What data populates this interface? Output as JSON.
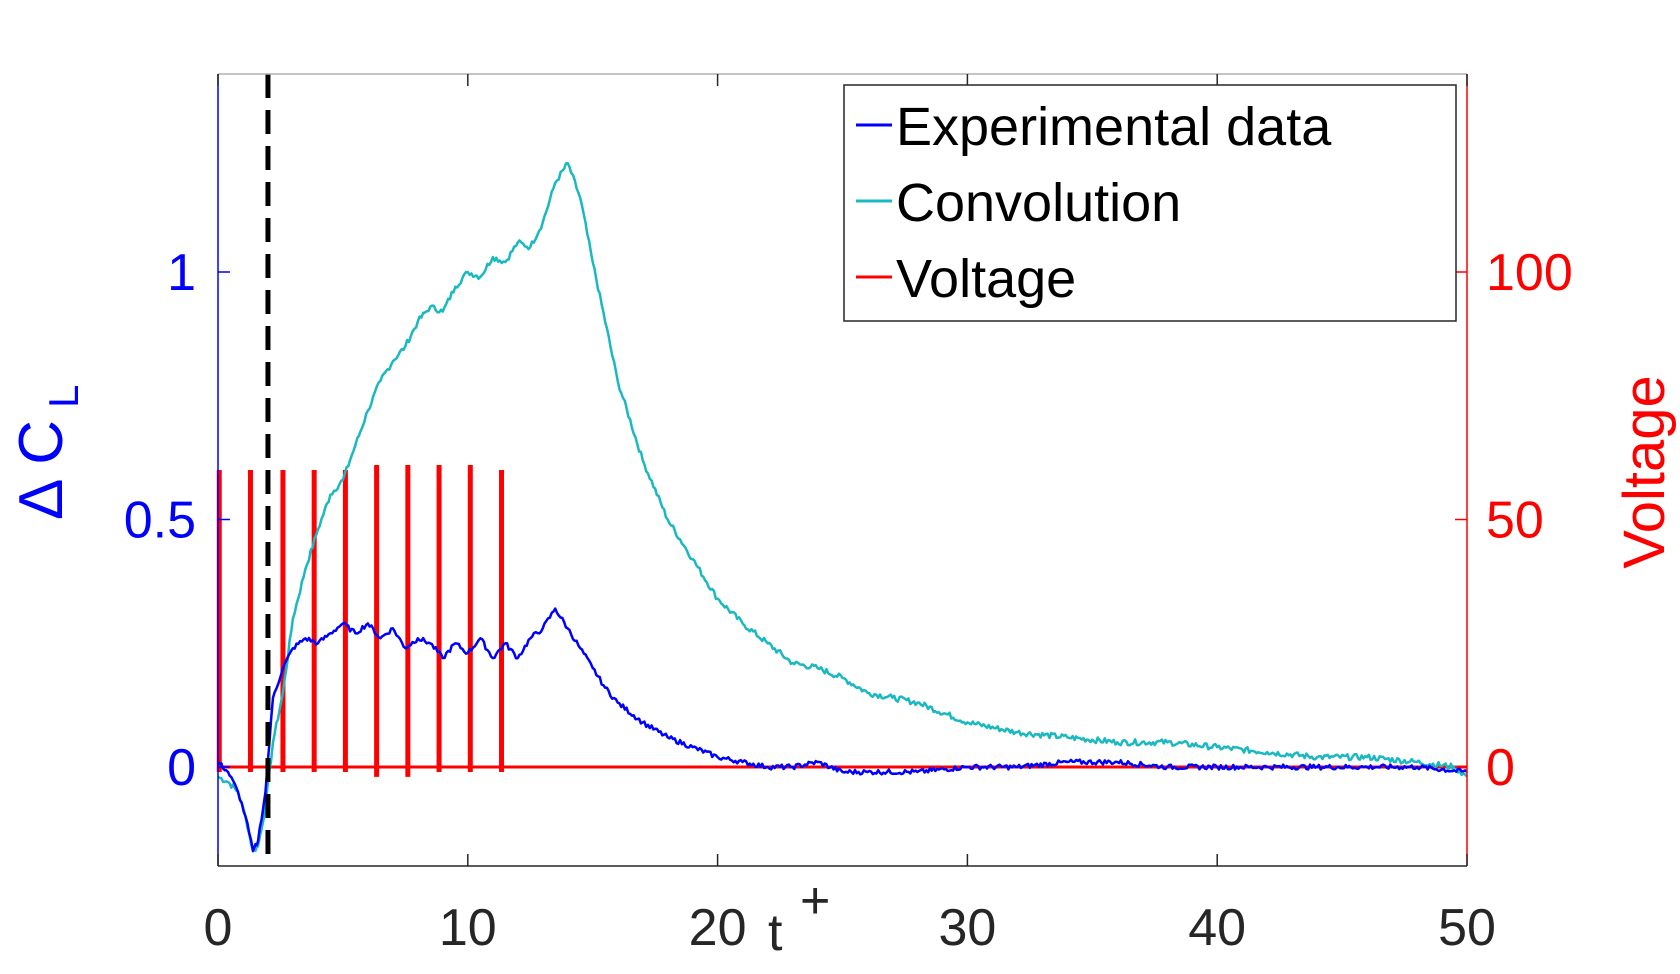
{
  "chart_data": {
    "type": "line",
    "xlabel": "t",
    "xlabel_sup": "+",
    "ylabel_left": "Δ C",
    "ylabel_left_sub": "L",
    "ylabel_right": "Voltage",
    "xlim": [
      0,
      50
    ],
    "ylim_left": [
      -0.2,
      1.4
    ],
    "ylim_right": [
      -20,
      140
    ],
    "x_ticks": [
      "0",
      "10",
      "20",
      "30",
      "40",
      "50"
    ],
    "y_left_ticks": [
      "0",
      "0.5",
      "1"
    ],
    "y_right_ticks": [
      "0",
      "50",
      "100"
    ],
    "grid": false,
    "legend_position": "top-right",
    "marker_line_x": 2.0,
    "colors": {
      "experimental": "#0000ff",
      "convolution": "#1ab8c0",
      "voltage": "#ff0000",
      "marker": "#000000",
      "tick_x": "#262626"
    },
    "series": [
      {
        "name": "Experimental data",
        "axis": "left",
        "x": [
          0,
          0.4,
          0.8,
          1.1,
          1.4,
          1.6,
          1.9,
          2.2,
          2.6,
          3.0,
          3.5,
          4.0,
          4.5,
          5.0,
          5.5,
          6.0,
          6.5,
          7.0,
          7.5,
          8.0,
          8.5,
          9.0,
          9.5,
          10.0,
          10.5,
          11.0,
          11.5,
          12.0,
          12.5,
          13.0,
          13.5,
          14.0,
          14.5,
          15.0,
          15.5,
          16.0,
          17.0,
          18.0,
          19.0,
          20.0,
          21.0,
          22.0,
          23.0,
          24.0,
          25.0,
          26.0,
          28.0,
          30.0,
          32.0,
          34.0,
          36.0,
          38.0,
          40.0,
          42.0,
          44.0,
          46.0,
          48.0,
          50.0
        ],
        "values": [
          0.01,
          -0.01,
          -0.05,
          -0.1,
          -0.17,
          -0.15,
          -0.05,
          0.14,
          0.2,
          0.24,
          0.26,
          0.25,
          0.27,
          0.29,
          0.27,
          0.29,
          0.26,
          0.28,
          0.24,
          0.26,
          0.25,
          0.22,
          0.25,
          0.23,
          0.26,
          0.22,
          0.25,
          0.22,
          0.26,
          0.28,
          0.32,
          0.28,
          0.24,
          0.2,
          0.16,
          0.13,
          0.09,
          0.06,
          0.04,
          0.02,
          0.01,
          0.0,
          0.0,
          0.01,
          -0.01,
          -0.01,
          -0.01,
          0.0,
          0.0,
          0.01,
          0.01,
          0.0,
          0.0,
          0.0,
          0.0,
          0.0,
          0.0,
          -0.01
        ]
      },
      {
        "name": "Convolution",
        "axis": "left",
        "x": [
          0,
          0.4,
          0.8,
          1.1,
          1.4,
          1.6,
          1.9,
          2.2,
          2.6,
          3.0,
          3.5,
          4.0,
          4.5,
          5.0,
          5.5,
          6.0,
          6.5,
          7.0,
          7.5,
          8.0,
          8.5,
          9.0,
          9.5,
          10.0,
          10.5,
          11.0,
          11.5,
          12.0,
          12.5,
          13.0,
          13.5,
          14.0,
          14.5,
          15.0,
          16.0,
          17.0,
          18.0,
          19.0,
          20.0,
          21.0,
          22.0,
          23.0,
          24.0,
          25.0,
          26.0,
          27.0,
          28.0,
          30.0,
          32.0,
          34.0,
          36.0,
          38.0,
          40.0,
          42.0,
          44.0,
          46.0,
          48.0,
          49.5,
          50.0
        ],
        "values": [
          -0.02,
          -0.03,
          -0.05,
          -0.1,
          -0.17,
          -0.16,
          -0.08,
          0.05,
          0.15,
          0.3,
          0.4,
          0.48,
          0.55,
          0.58,
          0.65,
          0.72,
          0.78,
          0.82,
          0.85,
          0.9,
          0.93,
          0.92,
          0.97,
          1.0,
          0.99,
          1.03,
          1.02,
          1.06,
          1.05,
          1.1,
          1.18,
          1.22,
          1.15,
          1.02,
          0.78,
          0.62,
          0.5,
          0.42,
          0.34,
          0.29,
          0.25,
          0.21,
          0.2,
          0.18,
          0.15,
          0.14,
          0.13,
          0.09,
          0.07,
          0.06,
          0.05,
          0.05,
          0.04,
          0.03,
          0.02,
          0.02,
          0.01,
          0.0,
          -0.02
        ]
      },
      {
        "name": "Voltage",
        "axis": "right",
        "baseline": 0,
        "pulses": [
          {
            "x": 0.05,
            "values": [
              60,
              -1
            ]
          },
          {
            "x": 1.3,
            "values": [
              60,
              -1
            ]
          },
          {
            "x": 2.6,
            "values": [
              60,
              -1
            ]
          },
          {
            "x": 3.85,
            "values": [
              60,
              -1
            ]
          },
          {
            "x": 5.1,
            "values": [
              60,
              -1
            ]
          },
          {
            "x": 6.35,
            "values": [
              61,
              -2
            ]
          },
          {
            "x": 7.6,
            "values": [
              61,
              -2
            ]
          },
          {
            "x": 8.85,
            "values": [
              61,
              -1
            ]
          },
          {
            "x": 10.1,
            "values": [
              61,
              -1
            ]
          },
          {
            "x": 11.35,
            "values": [
              60,
              -1
            ]
          }
        ]
      }
    ]
  }
}
